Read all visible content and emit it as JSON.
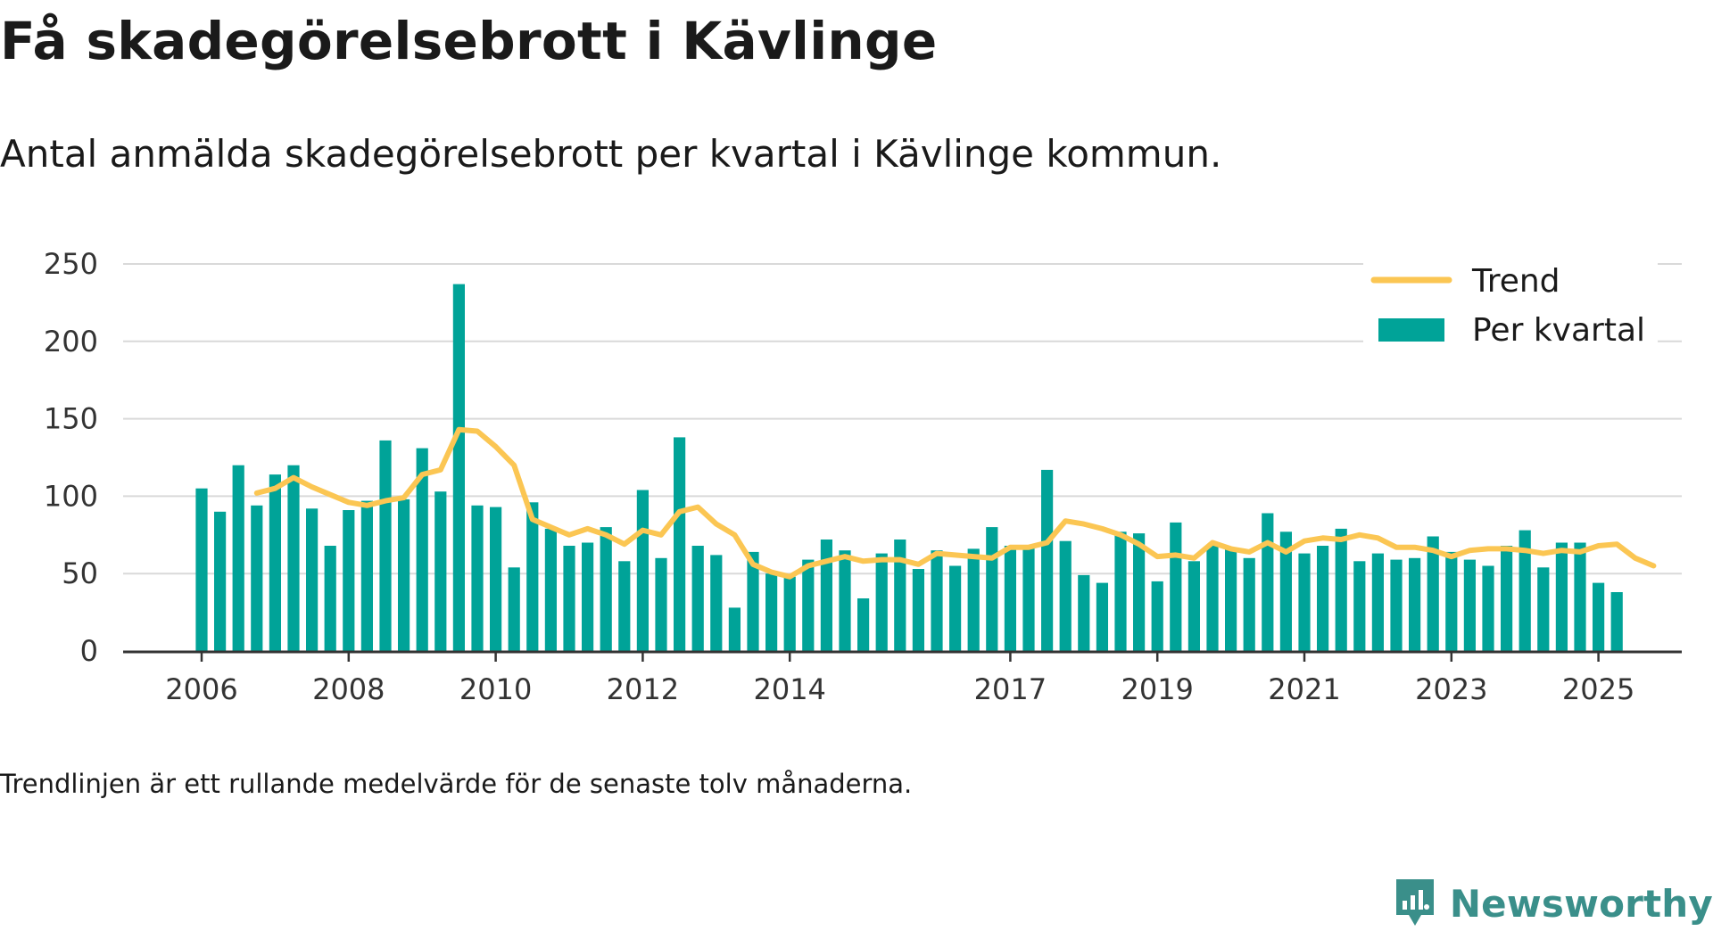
{
  "header": {
    "title": "Få skadegörelsebrott i Kävlinge",
    "subtitle": "Antal anmälda skadegörelsebrott per kvartal i Kävlinge kommun."
  },
  "footnote": "Trendlinjen är ett rullande medelvärde för de senaste tolv månaderna.",
  "brand": {
    "name": "Newsworthy"
  },
  "colors": {
    "bars": "#00a398",
    "trend": "#fbc653",
    "grid": "#d9d9d9",
    "axis": "#333333"
  },
  "chart_data": {
    "type": "bar",
    "title": "Få skadegörelsebrott i Kävlinge",
    "ylim": [
      0,
      250
    ],
    "yticks": [
      0,
      50,
      100,
      150,
      200,
      250
    ],
    "xticks": [
      "2006",
      "2008",
      "2010",
      "2012",
      "2014",
      "2017",
      "2019",
      "2021",
      "2023",
      "2025"
    ],
    "xtick_quarter_index": [
      0,
      8,
      16,
      24,
      32,
      44,
      52,
      60,
      68,
      76
    ],
    "grid": true,
    "legend_position": "top-right",
    "series": [
      {
        "name": "Per kvartal",
        "type": "bar",
        "start": "2006Q1",
        "values": [
          105,
          90,
          120,
          94,
          114,
          120,
          92,
          68,
          91,
          97,
          136,
          98,
          131,
          103,
          237,
          94,
          93,
          54,
          96,
          79,
          68,
          70,
          80,
          58,
          104,
          60,
          138,
          68,
          62,
          28,
          64,
          50,
          48,
          59,
          72,
          65,
          34,
          63,
          72,
          53,
          65,
          55,
          66,
          80,
          68,
          68,
          117,
          71,
          49,
          44,
          77,
          76,
          45,
          83,
          58,
          68,
          67,
          60,
          89,
          77,
          63,
          68,
          79,
          58,
          63,
          59,
          60,
          74,
          64,
          59,
          55,
          68,
          78,
          54,
          70,
          70,
          44,
          38
        ]
      },
      {
        "name": "Trend",
        "type": "line",
        "start": "2006Q4",
        "values": [
          102,
          105,
          112,
          106,
          101,
          96,
          94,
          97,
          99,
          114,
          117,
          143,
          142,
          132,
          120,
          85,
          80,
          75,
          79,
          75,
          69,
          78,
          75,
          90,
          93,
          82,
          75,
          56,
          51,
          48,
          55,
          58,
          61,
          58,
          59,
          59,
          56,
          63,
          62,
          61,
          60,
          67,
          67,
          70,
          84,
          82,
          79,
          75,
          69,
          61,
          62,
          60,
          70,
          66,
          64,
          70,
          64,
          71,
          73,
          72,
          75,
          73,
          67,
          67,
          65,
          61,
          65,
          66,
          66,
          65,
          63,
          65,
          64,
          68,
          69,
          60,
          55
        ]
      }
    ]
  }
}
